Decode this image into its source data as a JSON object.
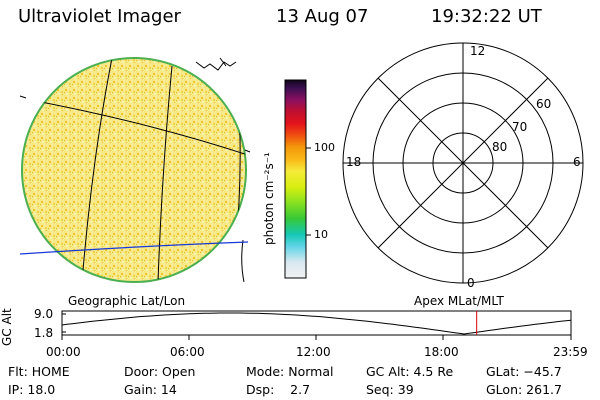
{
  "header": {
    "instrument": "Ultraviolet Imager",
    "date": "13 Aug 07",
    "time": "19:32:22 UT"
  },
  "globe": {
    "label": "Geographic Lat/Lon",
    "fill_color": "#f3e37a",
    "limb_color": "#4caf50"
  },
  "colorbar": {
    "unit_label": "photon cm⁻²s⁻¹",
    "ticks": [
      "100",
      "10"
    ]
  },
  "polar": {
    "label": "Apex MLat/MLT",
    "mlt_labels": {
      "top": "12",
      "left": "18",
      "right": "6",
      "bottom": "0"
    },
    "lat_labels": [
      "60",
      "70",
      "80"
    ]
  },
  "altitude_plot": {
    "ylabel": "GC Alt",
    "y_ticks": [
      "9.0",
      "1.8"
    ],
    "x_ticks": [
      "00:00",
      "06:00",
      "12:00",
      "18:00",
      "23:59"
    ],
    "marker_time": "19:32:22",
    "marker_color": "#d40000"
  },
  "status": {
    "row1": {
      "flt": "Flt: HOME",
      "door": "Door: Open",
      "mode": "Mode: Normal",
      "gc_alt": "GC Alt: 4.5 Re",
      "glat": "GLat: −45.7"
    },
    "row2": {
      "ip": "IP: 18.0",
      "gain": "Gain: 14",
      "dsp": "Dsp:    2.7",
      "seq": "Seq: 39",
      "glon": "GLon: 261.7"
    }
  }
}
